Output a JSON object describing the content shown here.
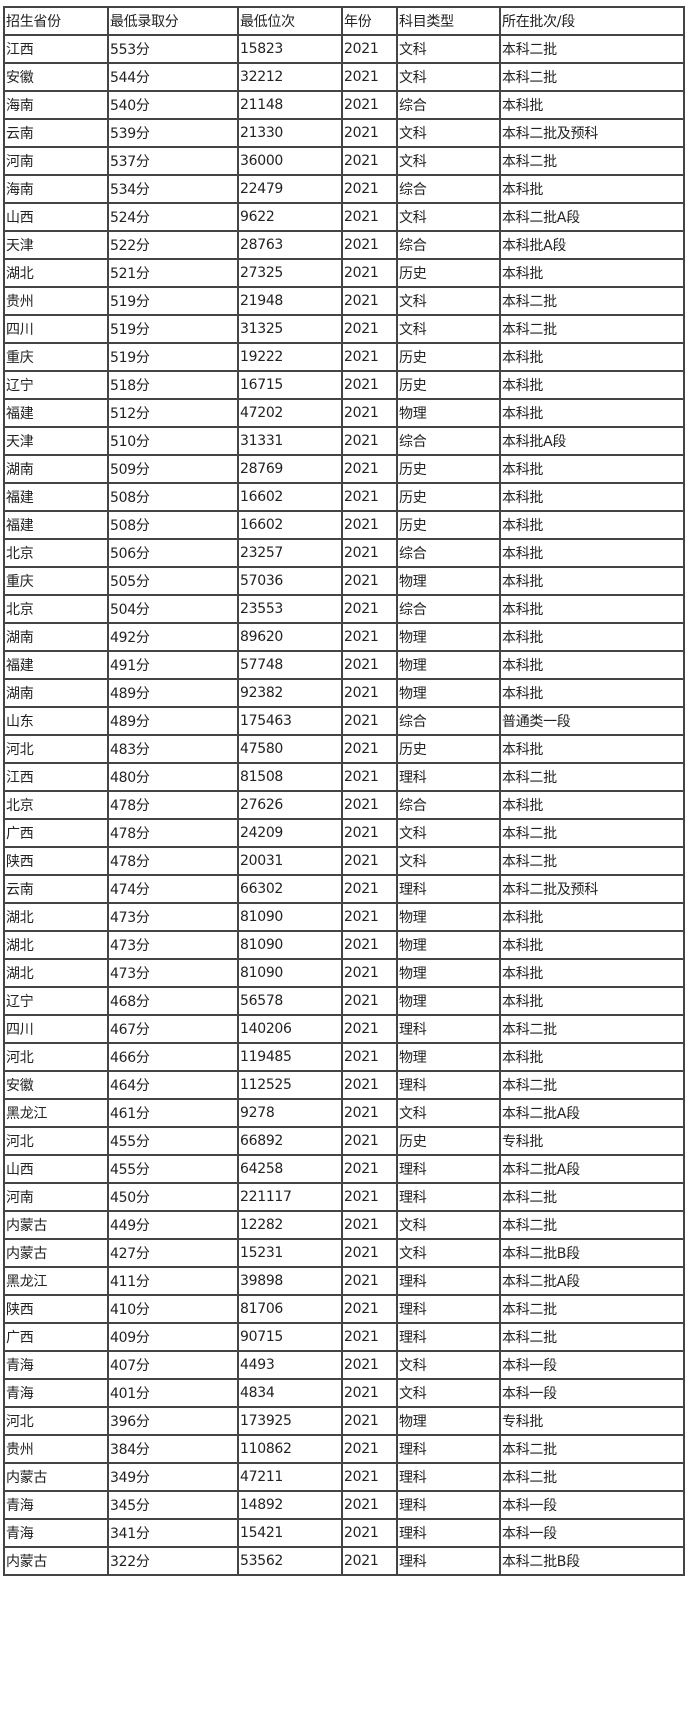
{
  "table": {
    "headers": [
      "招生省份",
      "最低录取分",
      "最低位次",
      "年份",
      "科目类型",
      "所在批次/段"
    ],
    "rows": [
      [
        "江西",
        "553分",
        "15823",
        "2021",
        "文科",
        "本科二批"
      ],
      [
        "安徽",
        "544分",
        "32212",
        "2021",
        "文科",
        "本科二批"
      ],
      [
        "海南",
        "540分",
        "21148",
        "2021",
        "综合",
        "本科批"
      ],
      [
        "云南",
        "539分",
        "21330",
        "2021",
        "文科",
        "本科二批及预科"
      ],
      [
        "河南",
        "537分",
        "36000",
        "2021",
        "文科",
        "本科二批"
      ],
      [
        "海南",
        "534分",
        "22479",
        "2021",
        "综合",
        "本科批"
      ],
      [
        "山西",
        "524分",
        "9622",
        "2021",
        "文科",
        "本科二批A段"
      ],
      [
        "天津",
        "522分",
        "28763",
        "2021",
        "综合",
        "本科批A段"
      ],
      [
        "湖北",
        "521分",
        "27325",
        "2021",
        "历史",
        "本科批"
      ],
      [
        "贵州",
        "519分",
        "21948",
        "2021",
        "文科",
        "本科二批"
      ],
      [
        "四川",
        "519分",
        "31325",
        "2021",
        "文科",
        "本科二批"
      ],
      [
        "重庆",
        "519分",
        "19222",
        "2021",
        "历史",
        "本科批"
      ],
      [
        "辽宁",
        "518分",
        "16715",
        "2021",
        "历史",
        "本科批"
      ],
      [
        "福建",
        "512分",
        "47202",
        "2021",
        "物理",
        "本科批"
      ],
      [
        "天津",
        "510分",
        "31331",
        "2021",
        "综合",
        "本科批A段"
      ],
      [
        "湖南",
        "509分",
        "28769",
        "2021",
        "历史",
        "本科批"
      ],
      [
        "福建",
        "508分",
        "16602",
        "2021",
        "历史",
        "本科批"
      ],
      [
        "福建",
        "508分",
        "16602",
        "2021",
        "历史",
        "本科批"
      ],
      [
        "北京",
        "506分",
        "23257",
        "2021",
        "综合",
        "本科批"
      ],
      [
        "重庆",
        "505分",
        "57036",
        "2021",
        "物理",
        "本科批"
      ],
      [
        "北京",
        "504分",
        "23553",
        "2021",
        "综合",
        "本科批"
      ],
      [
        "湖南",
        "492分",
        "89620",
        "2021",
        "物理",
        "本科批"
      ],
      [
        "福建",
        "491分",
        "57748",
        "2021",
        "物理",
        "本科批"
      ],
      [
        "湖南",
        "489分",
        "92382",
        "2021",
        "物理",
        "本科批"
      ],
      [
        "山东",
        "489分",
        "175463",
        "2021",
        "综合",
        "普通类一段"
      ],
      [
        "河北",
        "483分",
        "47580",
        "2021",
        "历史",
        "本科批"
      ],
      [
        "江西",
        "480分",
        "81508",
        "2021",
        "理科",
        "本科二批"
      ],
      [
        "北京",
        "478分",
        "27626",
        "2021",
        "综合",
        "本科批"
      ],
      [
        "广西",
        "478分",
        "24209",
        "2021",
        "文科",
        "本科二批"
      ],
      [
        "陕西",
        "478分",
        "20031",
        "2021",
        "文科",
        "本科二批"
      ],
      [
        "云南",
        "474分",
        "66302",
        "2021",
        "理科",
        "本科二批及预科"
      ],
      [
        "湖北",
        "473分",
        "81090",
        "2021",
        "物理",
        "本科批"
      ],
      [
        "湖北",
        "473分",
        "81090",
        "2021",
        "物理",
        "本科批"
      ],
      [
        "湖北",
        "473分",
        "81090",
        "2021",
        "物理",
        "本科批"
      ],
      [
        "辽宁",
        "468分",
        "56578",
        "2021",
        "物理",
        "本科批"
      ],
      [
        "四川",
        "467分",
        "140206",
        "2021",
        "理科",
        "本科二批"
      ],
      [
        "河北",
        "466分",
        "119485",
        "2021",
        "物理",
        "本科批"
      ],
      [
        "安徽",
        "464分",
        "112525",
        "2021",
        "理科",
        "本科二批"
      ],
      [
        "黑龙江",
        "461分",
        "9278",
        "2021",
        "文科",
        "本科二批A段"
      ],
      [
        "河北",
        "455分",
        "66892",
        "2021",
        "历史",
        "专科批"
      ],
      [
        "山西",
        "455分",
        "64258",
        "2021",
        "理科",
        "本科二批A段"
      ],
      [
        "河南",
        "450分",
        "221117",
        "2021",
        "理科",
        "本科二批"
      ],
      [
        "内蒙古",
        "449分",
        "12282",
        "2021",
        "文科",
        "本科二批"
      ],
      [
        "内蒙古",
        "427分",
        "15231",
        "2021",
        "文科",
        "本科二批B段"
      ],
      [
        "黑龙江",
        "411分",
        "39898",
        "2021",
        "理科",
        "本科二批A段"
      ],
      [
        "陕西",
        "410分",
        "81706",
        "2021",
        "理科",
        "本科二批"
      ],
      [
        "广西",
        "409分",
        "90715",
        "2021",
        "理科",
        "本科二批"
      ],
      [
        "青海",
        "407分",
        "4493",
        "2021",
        "文科",
        "本科一段"
      ],
      [
        "青海",
        "401分",
        "4834",
        "2021",
        "文科",
        "本科一段"
      ],
      [
        "河北",
        "396分",
        "173925",
        "2021",
        "物理",
        "专科批"
      ],
      [
        "贵州",
        "384分",
        "110862",
        "2021",
        "理科",
        "本科二批"
      ],
      [
        "内蒙古",
        "349分",
        "47211",
        "2021",
        "理科",
        "本科二批"
      ],
      [
        "青海",
        "345分",
        "14892",
        "2021",
        "理科",
        "本科一段"
      ],
      [
        "青海",
        "341分",
        "15421",
        "2021",
        "理科",
        "本科一段"
      ],
      [
        "内蒙古",
        "322分",
        "53562",
        "2021",
        "理科",
        "本科二批B段"
      ]
    ]
  }
}
